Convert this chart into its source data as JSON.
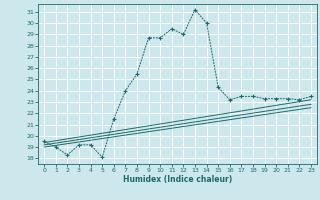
{
  "title": "",
  "xlabel": "Humidex (Indice chaleur)",
  "bg_color": "#cce8ec",
  "grid_color": "#ffffff",
  "line_color": "#1a6b6b",
  "xlim": [
    -0.5,
    23.5
  ],
  "ylim": [
    17.5,
    31.7
  ],
  "xticks": [
    0,
    1,
    2,
    3,
    4,
    5,
    6,
    7,
    8,
    9,
    10,
    11,
    12,
    13,
    14,
    15,
    16,
    17,
    18,
    19,
    20,
    21,
    22,
    23
  ],
  "yticks": [
    18,
    19,
    20,
    21,
    22,
    23,
    24,
    25,
    26,
    27,
    28,
    29,
    30,
    31
  ],
  "main_series": {
    "x": [
      0,
      1,
      2,
      3,
      4,
      5,
      6,
      7,
      8,
      9,
      10,
      11,
      12,
      13,
      14,
      15,
      16,
      17,
      18,
      19,
      20,
      21,
      22,
      23
    ],
    "y": [
      19.5,
      19.0,
      18.3,
      19.2,
      19.2,
      18.1,
      21.5,
      24.0,
      25.5,
      28.7,
      28.7,
      29.5,
      29.0,
      31.2,
      30.0,
      24.3,
      23.2,
      23.5,
      23.5,
      23.3,
      23.3,
      23.3,
      23.2,
      23.5
    ]
  },
  "linear1": {
    "x": [
      0,
      23
    ],
    "y": [
      19.0,
      22.5
    ]
  },
  "linear2": {
    "x": [
      0,
      23
    ],
    "y": [
      19.2,
      22.8
    ]
  },
  "linear3": {
    "x": [
      0,
      23
    ],
    "y": [
      19.4,
      23.2
    ]
  }
}
